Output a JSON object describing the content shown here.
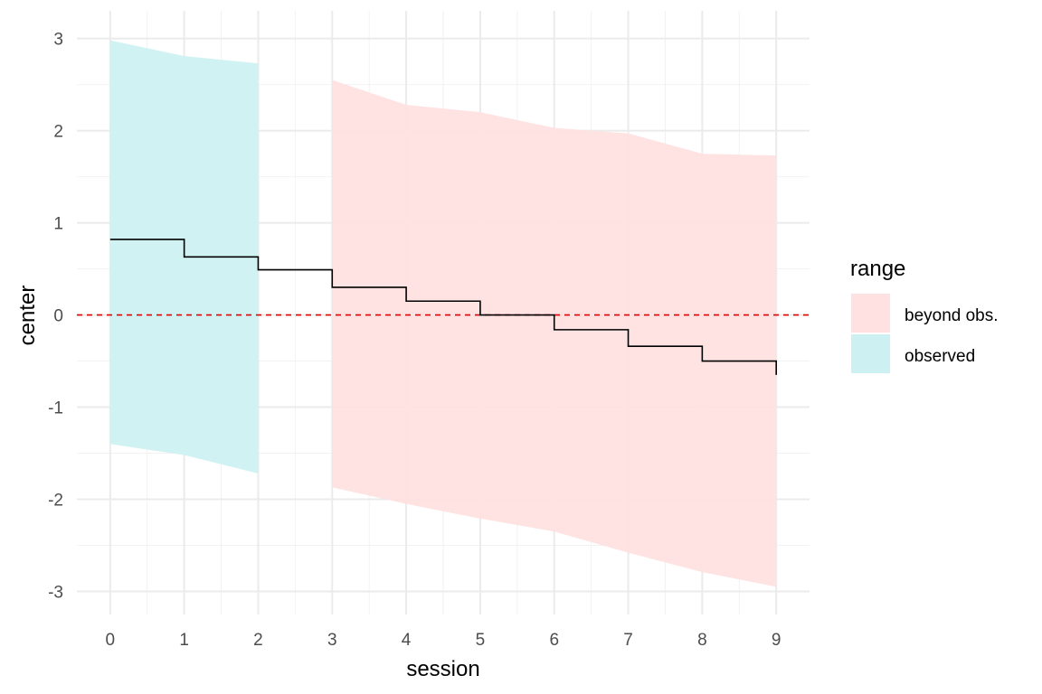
{
  "chart_data": {
    "type": "area",
    "xlabel": "session",
    "ylabel": "center",
    "xlim": [
      -0.45,
      9.45
    ],
    "ylim": [
      -3.25,
      3.3
    ],
    "x_ticks": [
      0,
      1,
      2,
      3,
      4,
      5,
      6,
      7,
      8,
      9
    ],
    "y_ticks": [
      -3,
      -2,
      -1,
      0,
      1,
      2,
      3
    ],
    "grid": true,
    "reference_line": {
      "y": 0,
      "color": "#e00000",
      "style": "dashed"
    },
    "legend": {
      "title": "range",
      "position": "right",
      "entries": [
        {
          "label": "beyond obs.",
          "color": "#ffe1e1"
        },
        {
          "label": "observed",
          "color": "#cdf1f2"
        }
      ]
    },
    "bands": [
      {
        "name": "observed",
        "color": "#cdf1f2",
        "x": [
          0,
          1,
          2
        ],
        "lower": [
          -1.4,
          -1.52,
          -1.72
        ],
        "upper": [
          2.98,
          2.81,
          2.73
        ]
      },
      {
        "name": "beyond obs.",
        "color": "#ffe1e1",
        "x": [
          3,
          4,
          5,
          6,
          7,
          8,
          9
        ],
        "lower": [
          -1.87,
          -2.05,
          -2.21,
          -2.35,
          -2.58,
          -2.79,
          -2.95
        ],
        "upper": [
          2.55,
          2.28,
          2.2,
          2.03,
          1.97,
          1.75,
          1.73
        ]
      }
    ],
    "step_line": {
      "color": "#000000",
      "x": [
        0,
        1,
        2,
        3,
        4,
        5,
        6,
        7,
        8,
        9
      ],
      "y": [
        0.82,
        0.63,
        0.49,
        0.3,
        0.15,
        0.0,
        -0.16,
        -0.34,
        -0.5,
        -0.65
      ]
    }
  }
}
